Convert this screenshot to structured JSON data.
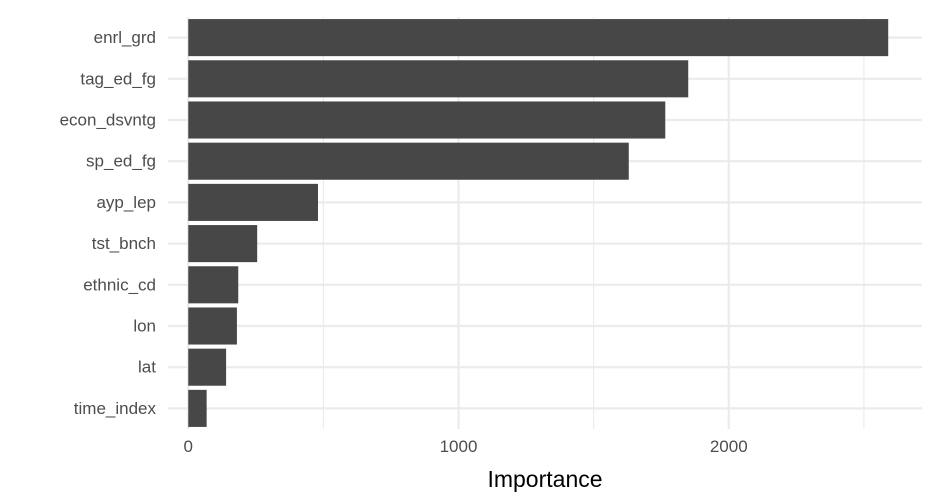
{
  "chart_data": {
    "type": "bar",
    "orientation": "horizontal",
    "title": "",
    "xlabel": "Importance",
    "ylabel": "",
    "categories": [
      "enrl_grd",
      "tag_ed_fg",
      "econ_dsvntg",
      "sp_ed_fg",
      "ayp_lep",
      "tst_bnch",
      "ethnic_cd",
      "lon",
      "lat",
      "time_index"
    ],
    "values": [
      2590,
      1850,
      1765,
      1630,
      480,
      255,
      185,
      180,
      140,
      68
    ],
    "x_ticks": [
      0,
      1000,
      2000
    ],
    "x_tick_labels": [
      "0",
      "1000",
      "2000"
    ],
    "xlim": [
      -75,
      2715
    ],
    "grid": true,
    "legend": "none",
    "colors": {
      "bar": "#474747",
      "grid": "#ebebeb",
      "background": "#ffffff",
      "tick_text": "#4d4d4d",
      "axis_title": "#000000"
    }
  }
}
